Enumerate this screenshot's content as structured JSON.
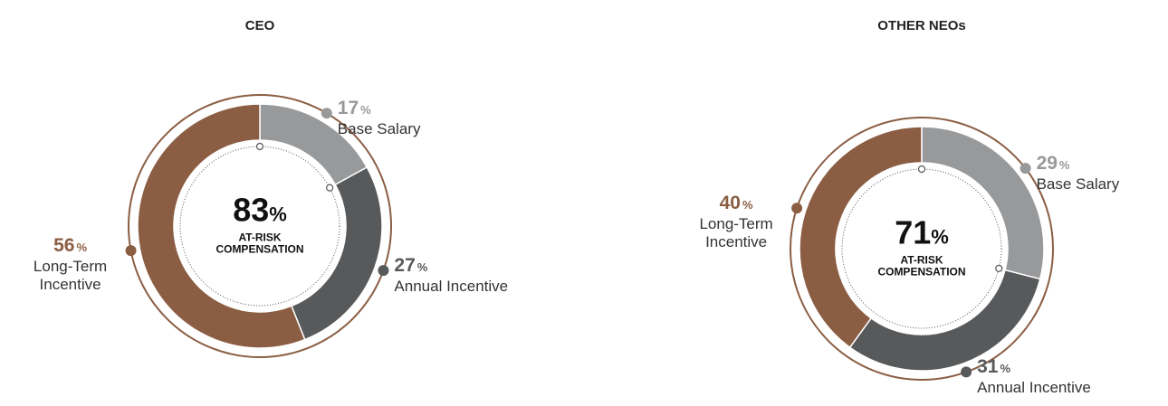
{
  "chart_data": [
    {
      "type": "pie",
      "title": "CEO",
      "categories": [
        "Base Salary",
        "Annual Incentive",
        "Long-Term Incentive"
      ],
      "values": [
        17,
        27,
        56
      ],
      "colors": [
        "#98999b",
        "#58595b",
        "#8b5e43"
      ],
      "unit": "%",
      "center_value": 83,
      "center_label": "AT-RISK COMPENSATION"
    },
    {
      "type": "pie",
      "title": "OTHER NEOs",
      "categories": [
        "Base Salary",
        "Annual Incentive",
        "Long-Term Incentive"
      ],
      "values": [
        29,
        31,
        40
      ],
      "colors": [
        "#98999b",
        "#58595b",
        "#8b5e43"
      ],
      "unit": "%",
      "center_value": 71,
      "center_label": "AT-RISK COMPENSATION"
    }
  ]
}
